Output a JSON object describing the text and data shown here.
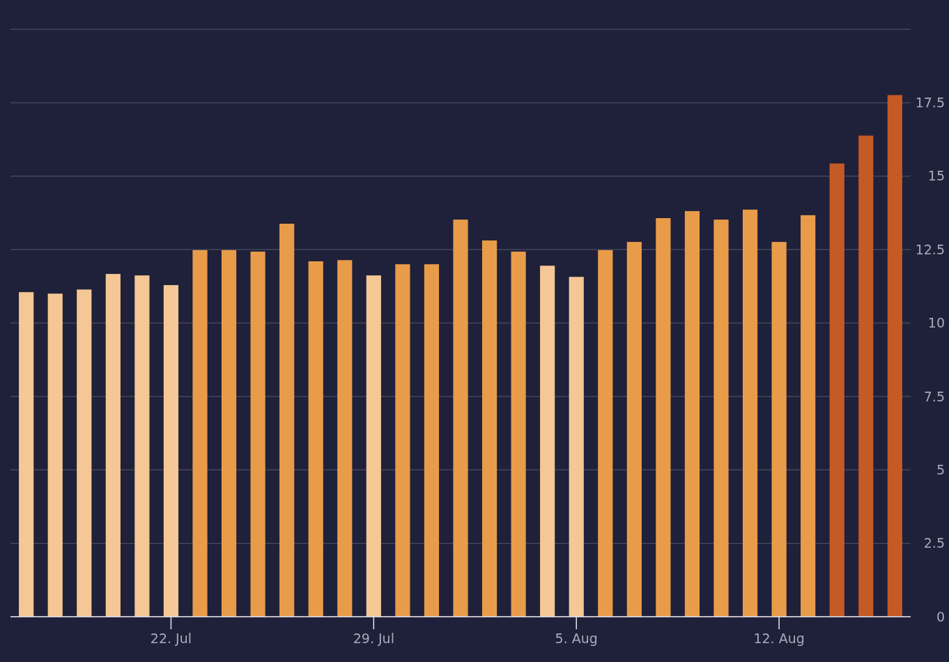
{
  "chart_data": {
    "type": "bar",
    "categories": [
      null,
      null,
      null,
      null,
      null,
      "22. Jul",
      null,
      null,
      null,
      null,
      null,
      null,
      "29. Jul",
      null,
      null,
      null,
      null,
      null,
      null,
      "5. Aug",
      null,
      null,
      null,
      null,
      null,
      null,
      "12. Aug",
      null,
      null,
      null,
      null
    ],
    "values": [
      11.05,
      11.0,
      11.14,
      11.67,
      11.62,
      11.29,
      12.48,
      12.48,
      12.43,
      13.38,
      12.1,
      12.14,
      11.62,
      12.0,
      12.0,
      13.52,
      12.81,
      12.43,
      11.95,
      11.57,
      12.48,
      12.76,
      13.57,
      13.81,
      13.52,
      13.86,
      12.76,
      13.67,
      15.43,
      16.38,
      17.76
    ],
    "colors": [
      "#f4c795",
      "#f4c795",
      "#f4c795",
      "#f4c795",
      "#f4c795",
      "#f4c795",
      "#e89c4a",
      "#e89c4a",
      "#e89c4a",
      "#e89c4a",
      "#e89c4a",
      "#e89c4a",
      "#f4c795",
      "#e89c4a",
      "#e89c4a",
      "#e89c4a",
      "#e89c4a",
      "#e89c4a",
      "#f4c795",
      "#f4c795",
      "#e89c4a",
      "#e89c4a",
      "#e89c4a",
      "#e89c4a",
      "#e89c4a",
      "#e89c4a",
      "#e89c4a",
      "#e89c4a",
      "#c45a26",
      "#c45a26",
      "#c45a26"
    ],
    "ylim": [
      0,
      20
    ],
    "yticks": [
      0,
      2.5,
      5,
      7.5,
      10,
      12.5,
      15,
      17.5,
      {
        "value": 20,
        "label": null
      }
    ],
    "grid": "y"
  }
}
